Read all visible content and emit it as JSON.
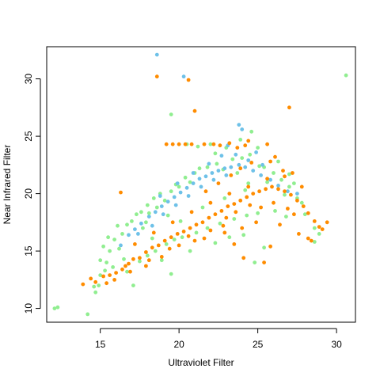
{
  "chart_data": {
    "type": "scatter",
    "xlabel": "Ultraviolet Filter",
    "ylabel": "Near Infrared Filter",
    "xlim": [
      11.6,
      31.2
    ],
    "ylim": [
      8.8,
      32.8
    ],
    "xticks": [
      15,
      20,
      25,
      30
    ],
    "yticks": [
      10,
      15,
      20,
      25,
      30
    ],
    "grid": false,
    "legend": "none",
    "colors": {
      "green": "#90ee90",
      "orange": "#ff8c00",
      "blue": "#6ec1e8"
    },
    "series": [
      {
        "color": "green",
        "points": [
          [
            12.1,
            10.0
          ],
          [
            12.3,
            10.1
          ],
          [
            14.2,
            9.5
          ],
          [
            14.6,
            11.9
          ],
          [
            14.7,
            11.4
          ],
          [
            14.9,
            12.0
          ],
          [
            15.0,
            12.9
          ],
          [
            15.3,
            13.3
          ],
          [
            15.0,
            14.2
          ],
          [
            15.4,
            14.0
          ],
          [
            15.2,
            15.4
          ],
          [
            15.6,
            15.0
          ],
          [
            15.5,
            16.2
          ],
          [
            15.9,
            16.0
          ],
          [
            16.2,
            15.2
          ],
          [
            16.4,
            16.5
          ],
          [
            16.7,
            17.3
          ],
          [
            16.1,
            17.2
          ],
          [
            17.0,
            17.6
          ],
          [
            17.3,
            18.2
          ],
          [
            17.6,
            18.4
          ],
          [
            17.7,
            17.0
          ],
          [
            18.0,
            19.0
          ],
          [
            18.1,
            18.3
          ],
          [
            18.4,
            19.6
          ],
          [
            18.6,
            18.8
          ],
          [
            18.8,
            20.0
          ],
          [
            19.1,
            19.4
          ],
          [
            19.5,
            20.2
          ],
          [
            19.8,
            20.8
          ],
          [
            20.0,
            20.6
          ],
          [
            20.4,
            21.4
          ],
          [
            20.7,
            21.0
          ],
          [
            21.0,
            21.8
          ],
          [
            21.3,
            22.2
          ],
          [
            21.8,
            22.3
          ],
          [
            22.4,
            22.6
          ],
          [
            22.8,
            22.1
          ],
          [
            23.4,
            23.0
          ],
          [
            24.0,
            23.1
          ],
          [
            24.5,
            23.4
          ],
          [
            25.1,
            22.4
          ],
          [
            25.4,
            22.3
          ],
          [
            26.0,
            21.8
          ],
          [
            26.5,
            21.2
          ],
          [
            27.0,
            20.6
          ],
          [
            27.3,
            20.9
          ],
          [
            27.5,
            19.6
          ],
          [
            27.8,
            19.2
          ],
          [
            28.0,
            18.2
          ],
          [
            28.6,
            17.0
          ],
          [
            28.9,
            16.5
          ],
          [
            28.6,
            15.8
          ],
          [
            19.5,
            26.9
          ],
          [
            20.5,
            24.3
          ],
          [
            22.0,
            24.3
          ],
          [
            21.2,
            24.1
          ],
          [
            30.6,
            30.3
          ],
          [
            22.3,
            23.5
          ],
          [
            23.0,
            24.0
          ],
          [
            24.6,
            25.4
          ],
          [
            23.9,
            24.7
          ],
          [
            16.7,
            13.2
          ],
          [
            17.1,
            12.0
          ],
          [
            17.5,
            14.1
          ],
          [
            18.0,
            14.6
          ],
          [
            18.5,
            15.0
          ],
          [
            19.2,
            15.6
          ],
          [
            19.7,
            16.0
          ],
          [
            20.2,
            16.2
          ],
          [
            21.1,
            16.6
          ],
          [
            21.8,
            17.0
          ],
          [
            22.6,
            17.4
          ],
          [
            23.5,
            17.8
          ],
          [
            24.3,
            18.1
          ],
          [
            25.0,
            18.3
          ],
          [
            26.1,
            18.5
          ],
          [
            26.8,
            18.0
          ],
          [
            24.8,
            14.0
          ],
          [
            25.4,
            15.3
          ],
          [
            24.1,
            16.4
          ],
          [
            19.5,
            13.0
          ],
          [
            18.9,
            14.2
          ],
          [
            20.7,
            15.0
          ],
          [
            22.3,
            15.7
          ],
          [
            23.2,
            16.2
          ],
          [
            17.9,
            17.5
          ],
          [
            19.3,
            18.1
          ],
          [
            21.5,
            18.8
          ],
          [
            22.9,
            19.6
          ],
          [
            24.2,
            20.3
          ],
          [
            25.6,
            21.0
          ],
          [
            26.7,
            19.9
          ],
          [
            23.7,
            21.8
          ],
          [
            20.1,
            17.6
          ],
          [
            18.3,
            16.1
          ],
          [
            16.5,
            14.3
          ],
          [
            15.8,
            13.6
          ],
          [
            27.0,
            21.7
          ],
          [
            26.3,
            22.8
          ],
          [
            25.0,
            24.0
          ],
          [
            24.4,
            20.9
          ]
        ]
      },
      {
        "color": "blue",
        "points": [
          [
            18.6,
            32.1
          ],
          [
            20.3,
            30.2
          ],
          [
            23.8,
            26.0
          ],
          [
            24.0,
            25.6
          ],
          [
            16.3,
            15.5
          ],
          [
            16.8,
            16.4
          ],
          [
            17.2,
            16.9
          ],
          [
            17.6,
            17.4
          ],
          [
            18.1,
            18.0
          ],
          [
            18.5,
            18.4
          ],
          [
            18.9,
            18.9
          ],
          [
            19.3,
            19.3
          ],
          [
            19.7,
            19.7
          ],
          [
            20.1,
            20.1
          ],
          [
            20.5,
            20.5
          ],
          [
            20.9,
            20.9
          ],
          [
            21.3,
            21.3
          ],
          [
            21.7,
            21.5
          ],
          [
            22.1,
            21.8
          ],
          [
            22.5,
            22.0
          ],
          [
            22.9,
            22.2
          ],
          [
            23.3,
            22.3
          ],
          [
            23.8,
            22.5
          ],
          [
            24.2,
            22.3
          ],
          [
            24.7,
            22.0
          ],
          [
            25.2,
            21.6
          ],
          [
            25.8,
            21.2
          ],
          [
            26.3,
            20.7
          ],
          [
            26.9,
            20.2
          ],
          [
            27.5,
            20.0
          ],
          [
            17.4,
            16.5
          ],
          [
            18.3,
            17.2
          ],
          [
            19.0,
            18.2
          ],
          [
            19.8,
            19.0
          ],
          [
            20.6,
            19.8
          ],
          [
            21.4,
            20.6
          ],
          [
            22.2,
            21.2
          ],
          [
            23.0,
            21.6
          ],
          [
            23.6,
            23.4
          ],
          [
            24.4,
            22.9
          ],
          [
            22.7,
            23.3
          ],
          [
            21.9,
            22.6
          ],
          [
            20.9,
            21.8
          ],
          [
            19.9,
            20.9
          ],
          [
            18.8,
            19.8
          ],
          [
            25.3,
            22.5
          ],
          [
            24.9,
            23.6
          ],
          [
            23.1,
            24.2
          ]
        ]
      },
      {
        "color": "orange",
        "points": [
          [
            13.9,
            12.1
          ],
          [
            14.4,
            12.6
          ],
          [
            14.7,
            12.3
          ],
          [
            15.2,
            12.8
          ],
          [
            15.6,
            12.9
          ],
          [
            16.0,
            13.1
          ],
          [
            16.4,
            13.4
          ],
          [
            16.8,
            13.9
          ],
          [
            17.1,
            14.3
          ],
          [
            17.5,
            14.4
          ],
          [
            17.9,
            14.9
          ],
          [
            18.3,
            15.3
          ],
          [
            18.7,
            15.5
          ],
          [
            19.1,
            15.9
          ],
          [
            19.5,
            16.2
          ],
          [
            19.9,
            16.5
          ],
          [
            20.3,
            16.7
          ],
          [
            20.7,
            17.0
          ],
          [
            21.1,
            17.3
          ],
          [
            21.5,
            17.5
          ],
          [
            21.9,
            17.9
          ],
          [
            22.3,
            18.2
          ],
          [
            22.7,
            18.5
          ],
          [
            23.1,
            18.9
          ],
          [
            23.5,
            19.1
          ],
          [
            23.9,
            19.4
          ],
          [
            24.3,
            19.7
          ],
          [
            24.7,
            20.0
          ],
          [
            25.1,
            20.2
          ],
          [
            25.5,
            20.4
          ],
          [
            25.9,
            20.6
          ],
          [
            26.3,
            20.4
          ],
          [
            26.7,
            20.2
          ],
          [
            27.1,
            19.9
          ],
          [
            27.5,
            19.4
          ],
          [
            27.9,
            18.9
          ],
          [
            28.2,
            18.3
          ],
          [
            28.6,
            17.6
          ],
          [
            28.9,
            17.1
          ],
          [
            29.1,
            16.9
          ],
          [
            28.2,
            16.1
          ],
          [
            27.6,
            16.5
          ],
          [
            16.3,
            20.1
          ],
          [
            18.6,
            30.2
          ],
          [
            20.6,
            29.9
          ],
          [
            21.0,
            27.2
          ],
          [
            27.0,
            27.5
          ],
          [
            19.2,
            24.3
          ],
          [
            19.6,
            24.3
          ],
          [
            20.0,
            24.3
          ],
          [
            20.4,
            24.3
          ],
          [
            20.8,
            24.3
          ],
          [
            21.6,
            24.3
          ],
          [
            22.2,
            24.3
          ],
          [
            22.6,
            24.2
          ],
          [
            23.2,
            24.4
          ],
          [
            23.7,
            24.0
          ],
          [
            24.4,
            24.6
          ],
          [
            24.2,
            24.2
          ],
          [
            25.6,
            24.3
          ],
          [
            26.1,
            23.2
          ],
          [
            25.8,
            22.8
          ],
          [
            26.6,
            22.0
          ],
          [
            27.2,
            21.8
          ],
          [
            27.8,
            20.6
          ],
          [
            23.3,
            21.6
          ],
          [
            23.9,
            22.2
          ],
          [
            24.6,
            22.7
          ],
          [
            22.5,
            20.9
          ],
          [
            21.7,
            20.2
          ],
          [
            22.9,
            16.6
          ],
          [
            23.5,
            15.6
          ],
          [
            24.1,
            14.4
          ],
          [
            25.4,
            14.0
          ],
          [
            25.8,
            15.4
          ],
          [
            26.4,
            17.3
          ],
          [
            26.9,
            18.7
          ],
          [
            24.9,
            17.5
          ],
          [
            24.0,
            17.0
          ],
          [
            23.0,
            17.9
          ],
          [
            22.0,
            16.8
          ],
          [
            21.0,
            15.9
          ],
          [
            20.0,
            15.5
          ],
          [
            18.9,
            14.5
          ],
          [
            17.9,
            13.7
          ],
          [
            16.9,
            13.2
          ],
          [
            15.9,
            12.5
          ],
          [
            17.2,
            15.6
          ],
          [
            18.4,
            16.6
          ],
          [
            19.6,
            17.5
          ],
          [
            20.8,
            18.4
          ],
          [
            22.0,
            19.2
          ],
          [
            23.2,
            20.0
          ],
          [
            24.4,
            20.6
          ],
          [
            25.6,
            21.3
          ],
          [
            26.7,
            21.5
          ],
          [
            27.3,
            18.2
          ],
          [
            26.0,
            19.2
          ],
          [
            25.2,
            18.8
          ],
          [
            24.5,
            19.0
          ],
          [
            23.6,
            18.4
          ],
          [
            22.8,
            17.2
          ],
          [
            21.6,
            16.1
          ],
          [
            20.6,
            16.3
          ],
          [
            19.4,
            15.2
          ],
          [
            18.1,
            14.2
          ],
          [
            16.6,
            13.7
          ],
          [
            15.4,
            12.2
          ],
          [
            29.4,
            17.5
          ],
          [
            28.4,
            15.9
          ]
        ]
      }
    ]
  }
}
